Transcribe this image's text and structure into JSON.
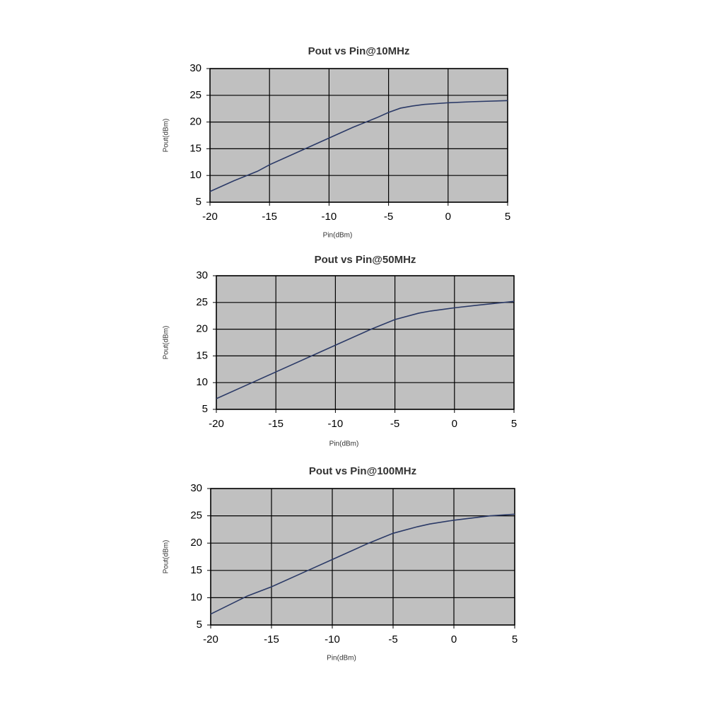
{
  "chart_data": [
    {
      "type": "line",
      "title": "Pout vs Pin@10MHz",
      "x_label": "Pin(dBm)",
      "y_label": "Pout(dBm)",
      "x": [
        -20,
        -18,
        -16,
        -15,
        -12,
        -10,
        -8,
        -6,
        -5,
        -4,
        -3,
        -2,
        0,
        2,
        5
      ],
      "series": [
        {
          "name": "Pout",
          "color": "#2b3a67",
          "values": [
            7,
            9,
            10.8,
            12,
            15,
            17,
            19,
            20.8,
            21.8,
            22.6,
            23,
            23.3,
            23.6,
            23.8,
            24
          ]
        }
      ],
      "xlim": [
        -20,
        5
      ],
      "xticks": [
        -20,
        -15,
        -10,
        -5,
        0,
        5
      ],
      "ylim": [
        5,
        30
      ],
      "yticks": [
        5,
        10,
        15,
        20,
        25,
        30
      ],
      "grid": true,
      "background": "#c0c0c0"
    },
    {
      "type": "line",
      "title": "Pout vs Pin@50MHz",
      "x_label": "Pin(dBm)",
      "y_label": "Pout(dBm)",
      "x": [
        -20,
        -17,
        -15,
        -12,
        -10,
        -7,
        -5,
        -3,
        -2,
        0,
        2,
        5
      ],
      "series": [
        {
          "name": "Pout",
          "color": "#2b3a67",
          "values": [
            7,
            10,
            12,
            15,
            17,
            20,
            21.8,
            23,
            23.4,
            24,
            24.5,
            25.2
          ]
        }
      ],
      "xlim": [
        -20,
        5
      ],
      "xticks": [
        -20,
        -15,
        -10,
        -5,
        0,
        5
      ],
      "ylim": [
        5,
        30
      ],
      "yticks": [
        5,
        10,
        15,
        20,
        25,
        30
      ],
      "grid": true,
      "background": "#c0c0c0"
    },
    {
      "type": "line",
      "title": "Pout vs Pin@100MHz",
      "x_label": "Pin(dBm)",
      "y_label": "Pout(dBm)",
      "x": [
        -20,
        -17,
        -15,
        -12,
        -10,
        -7,
        -5,
        -3,
        -2,
        0,
        3,
        5
      ],
      "series": [
        {
          "name": "Pout",
          "color": "#2b3a67",
          "values": [
            7,
            10.3,
            12,
            15,
            17,
            20,
            21.8,
            23,
            23.5,
            24.2,
            25,
            25.3
          ]
        }
      ],
      "xlim": [
        -20,
        5
      ],
      "xticks": [
        -20,
        -15,
        -10,
        -5,
        0,
        5
      ],
      "ylim": [
        5,
        30
      ],
      "yticks": [
        5,
        10,
        15,
        20,
        25,
        30
      ],
      "grid": true,
      "background": "#c0c0c0"
    }
  ]
}
